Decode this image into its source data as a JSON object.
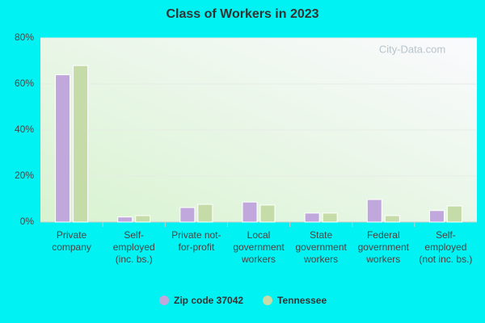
{
  "chart_data": {
    "type": "bar",
    "title": "Class of Workers in 2023",
    "categories": [
      "Private company",
      "Self-employed (inc. bs.)",
      "Private not-for-profit",
      "Local government workers",
      "State government workers",
      "Federal government workers",
      "Self-employed (not inc. bs.)"
    ],
    "series": [
      {
        "name": "Zip code 37042",
        "color": "#c0a8dc",
        "values": [
          64,
          2.2,
          6.3,
          8.7,
          3.9,
          9.8,
          5.0
        ]
      },
      {
        "name": "Tennessee",
        "color": "#c5dba8",
        "values": [
          68,
          2.8,
          7.7,
          7.4,
          3.9,
          2.8,
          7.0
        ]
      }
    ],
    "ylim": [
      0,
      80
    ],
    "yticks": [
      {
        "value": 0,
        "label": "0%"
      },
      {
        "value": 20,
        "label": "20%"
      },
      {
        "value": 40,
        "label": "40%"
      },
      {
        "value": 60,
        "label": "60%"
      },
      {
        "value": 80,
        "label": "80%"
      }
    ],
    "grid": true,
    "legend": "bottom",
    "watermark": "City-Data.com"
  }
}
